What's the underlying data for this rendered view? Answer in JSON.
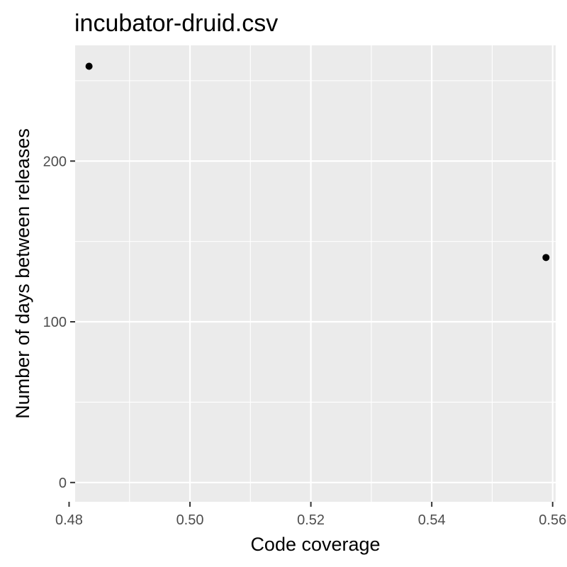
{
  "chart_data": {
    "type": "scatter",
    "title": "incubator-druid.csv",
    "xlabel": "Code coverage",
    "ylabel": "Number of days between releases",
    "xlim": [
      0.481,
      0.5605
    ],
    "ylim": [
      -12,
      272
    ],
    "x_ticks": [
      0.48,
      0.5,
      0.52,
      0.54,
      0.56
    ],
    "x_tick_labels": [
      "0.48",
      "0.50",
      "0.52",
      "0.54",
      "0.56"
    ],
    "y_ticks": [
      0,
      100,
      200
    ],
    "y_tick_labels": [
      "0",
      "100",
      "200"
    ],
    "points": [
      {
        "x": 0.4833,
        "y": 259
      },
      {
        "x": 0.5589,
        "y": 140
      }
    ],
    "grid": true,
    "panel_background": "#ebebeb",
    "grid_color": "#ffffff",
    "point_color": "#000000",
    "tick_label_color": "#4d4d4d"
  }
}
